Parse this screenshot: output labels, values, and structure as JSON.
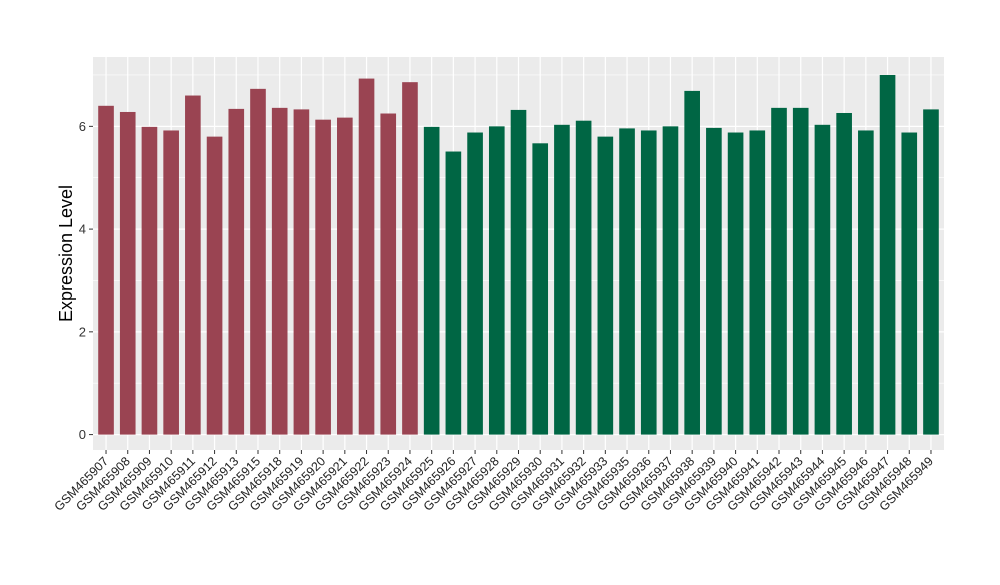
{
  "chart_data": {
    "type": "bar",
    "title": "",
    "xlabel": "",
    "ylabel": "Expression Level",
    "ylim": [
      -0.3,
      7.35
    ],
    "yticks": [
      0,
      2,
      4,
      6
    ],
    "grid": true,
    "legend": "none",
    "colors": {
      "group_a": "#9a4452",
      "group_b": "#006644",
      "panel": "#ebebeb",
      "gridline": "#ffffff"
    },
    "categories": [
      "GSM465907",
      "GSM465908",
      "GSM465909",
      "GSM465910",
      "GSM465911",
      "GSM465912",
      "GSM465913",
      "GSM465915",
      "GSM465918",
      "GSM465919",
      "GSM465920",
      "GSM465921",
      "GSM465922",
      "GSM465923",
      "GSM465924",
      "GSM465925",
      "GSM465926",
      "GSM465927",
      "GSM465928",
      "GSM465929",
      "GSM465930",
      "GSM465931",
      "GSM465932",
      "GSM465933",
      "GSM465935",
      "GSM465936",
      "GSM465937",
      "GSM465938",
      "GSM465939",
      "GSM465940",
      "GSM465941",
      "GSM465942",
      "GSM465943",
      "GSM465944",
      "GSM465945",
      "GSM465946",
      "GSM465947",
      "GSM465948",
      "GSM465949"
    ],
    "values": [
      6.4,
      6.28,
      5.99,
      5.92,
      6.6,
      5.8,
      6.34,
      6.73,
      6.36,
      6.33,
      6.13,
      6.17,
      6.93,
      6.25,
      6.86,
      5.99,
      5.51,
      5.88,
      6.0,
      6.32,
      5.67,
      6.03,
      6.11,
      5.8,
      5.96,
      5.92,
      6.0,
      6.69,
      5.97,
      5.88,
      5.92,
      6.36,
      6.36,
      6.03,
      6.26,
      5.92,
      7.0,
      5.88,
      6.33
    ],
    "groups": [
      "a",
      "a",
      "a",
      "a",
      "a",
      "a",
      "a",
      "a",
      "a",
      "a",
      "a",
      "a",
      "a",
      "a",
      "a",
      "b",
      "b",
      "b",
      "b",
      "b",
      "b",
      "b",
      "b",
      "b",
      "b",
      "b",
      "b",
      "b",
      "b",
      "b",
      "b",
      "b",
      "b",
      "b",
      "b",
      "b",
      "b",
      "b",
      "b"
    ]
  }
}
